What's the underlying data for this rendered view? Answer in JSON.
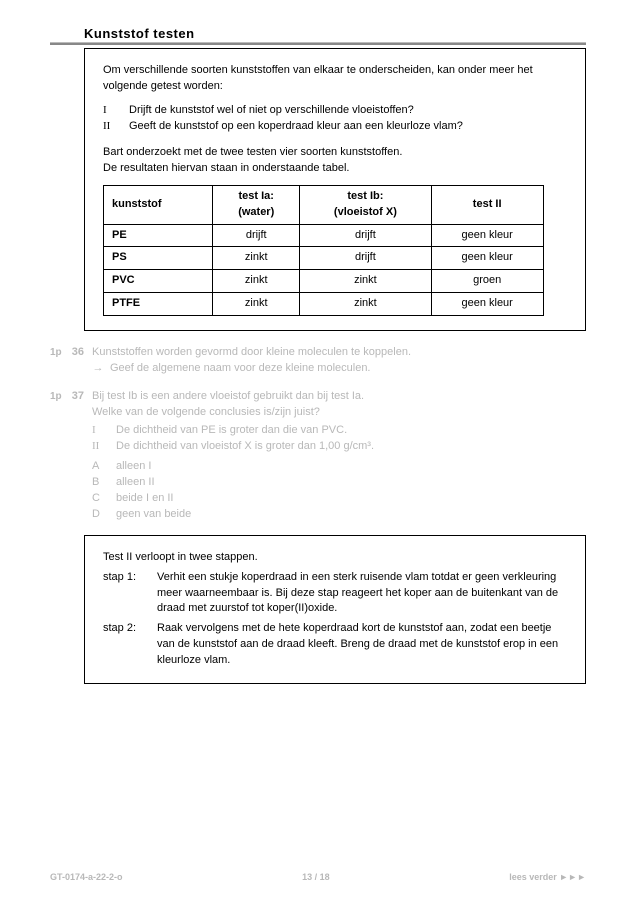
{
  "section_title": "Kunststof testen",
  "box1": {
    "intro": "Om verschillende soorten kunststoffen van elkaar te onderscheiden, kan onder meer het volgende getest worden:",
    "tests": [
      {
        "num": "I",
        "text": "Drijft de kunststof wel of niet op verschillende vloeistoffen?"
      },
      {
        "num": "II",
        "text": "Geeft de kunststof op een koperdraad kleur aan een kleurloze vlam?"
      }
    ],
    "para2a": "Bart onderzoekt met de twee testen vier soorten kunststoffen.",
    "para2b": "De resultaten hiervan staan in onderstaande tabel.",
    "table": {
      "headers": [
        "kunststof",
        "test Ia:\n(water)",
        "test Ib:\n(vloeistof X)",
        "test II"
      ],
      "rows": [
        [
          "PE",
          "drijft",
          "drijft",
          "geen kleur"
        ],
        [
          "PS",
          "zinkt",
          "drijft",
          "geen kleur"
        ],
        [
          "PVC",
          "zinkt",
          "zinkt",
          "groen"
        ],
        [
          "PTFE",
          "zinkt",
          "zinkt",
          "geen kleur"
        ]
      ]
    }
  },
  "q36": {
    "points": "1p",
    "num": "36",
    "line1": "Kunststoffen worden gevormd door kleine moleculen te koppelen.",
    "arrow": "→",
    "line2": "Geef de algemene naam voor deze kleine moleculen."
  },
  "q37": {
    "points": "1p",
    "num": "37",
    "line1": "Bij test Ib is een andere vloeistof gebruikt dan bij test Ia.",
    "line2": "Welke van de volgende conclusies is/zijn juist?",
    "subs": [
      {
        "label": "I",
        "text": "De dichtheid van PE is groter dan die van PVC."
      },
      {
        "label": "II",
        "text": "De dichtheid van vloeistof X is groter dan 1,00 g/cm³."
      }
    ],
    "options": [
      {
        "label": "A",
        "text": "alleen I"
      },
      {
        "label": "B",
        "text": "alleen II"
      },
      {
        "label": "C",
        "text": "beide I en II"
      },
      {
        "label": "D",
        "text": "geen van beide"
      }
    ]
  },
  "box2": {
    "intro": "Test II verloopt in twee stappen.",
    "steps": [
      {
        "label": "stap 1:",
        "text": "Verhit een stukje koperdraad in een sterk ruisende vlam totdat er geen verkleuring meer waarneembaar is. Bij deze stap reageert het koper aan de buitenkant van de draad met zuurstof tot koper(II)oxide."
      },
      {
        "label": "stap 2:",
        "text": "Raak vervolgens met de hete koperdraad kort de kunststof aan, zodat een beetje van de kunststof aan de draad kleeft. Breng de draad met de kunststof erop in een kleurloze vlam."
      }
    ]
  },
  "footer": {
    "left": "GT-0174-a-22-2-o",
    "center": "13 / 18",
    "right": "lees verder ►►►"
  }
}
